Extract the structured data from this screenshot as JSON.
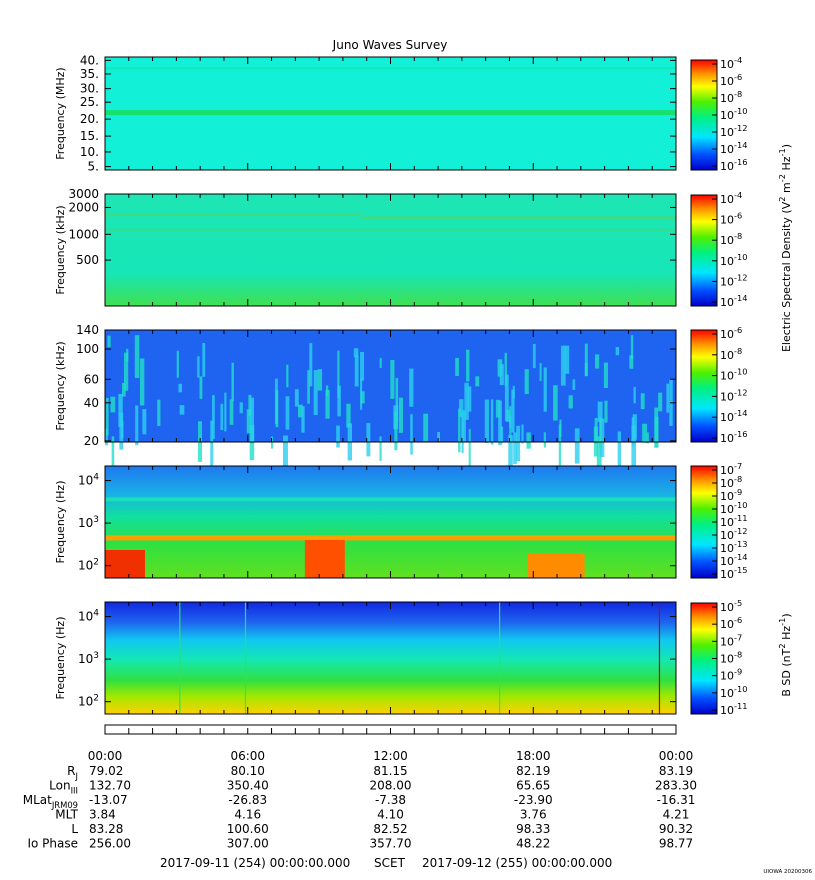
{
  "title": "Juno Waves Survey",
  "credit": "UIOWA 20200306",
  "colors": {
    "frame": "#000000",
    "text": "#000000",
    "background": "#ffffff"
  },
  "panels": [
    {
      "ylabel": "Frequency (MHz)",
      "yticks": [
        "40.",
        "35.",
        "30.",
        "25.",
        "20.",
        "15.",
        "10.",
        "5."
      ],
      "background": "#13f0d8",
      "cb_ticks": [
        "10^-4",
        "10^-6",
        "10^-8",
        "10^-10",
        "10^-12",
        "10^-14",
        "10^-16"
      ]
    },
    {
      "ylabel": "Frequency (kHz)",
      "yticks": [
        "3000",
        "2000",
        "1000",
        "500"
      ],
      "background": "#1ce6b0",
      "cb_ticks": [
        "10^-4",
        "10^-6",
        "10^-8",
        "10^-10",
        "10^-12",
        "10^-14"
      ]
    },
    {
      "ylabel": "Frequency (kHz)",
      "yticks": [
        "140",
        "100",
        "60",
        "40",
        "20"
      ],
      "background": "#1e64f0",
      "cb_ticks": [
        "10^-6",
        "10^-8",
        "10^-10",
        "10^-12",
        "10^-14",
        "10^-16"
      ]
    },
    {
      "ylabel": "Frequency (Hz)",
      "yticks": [
        "10^4",
        "10^3",
        "10^2"
      ],
      "background": "#18d870",
      "cb_ticks": [
        "10^-7",
        "10^-8",
        "10^-9",
        "10^-10",
        "10^-11",
        "10^-12",
        "10^-13",
        "10^-14",
        "10^-15"
      ]
    },
    {
      "ylabel": "Frequency (Hz)",
      "yticks": [
        "10^4",
        "10^3",
        "10^2"
      ],
      "background": "#18c8d0",
      "cb_ticks": [
        "10^-5",
        "10^-6",
        "10^-7",
        "10^-8",
        "10^-9",
        "10^-10",
        "10^-11"
      ]
    }
  ],
  "colorbar_labels": {
    "electric": "Electric Spectral Density (V^2 m^-2 Hz^-1)",
    "magnetic": "B SD (nT^2 Hz^-1)"
  },
  "chart_data": {
    "type": "heatmap",
    "title": "Juno Waves Survey",
    "x_tick_labels": [
      "00:00",
      "06:00",
      "12:00",
      "18:00",
      "00:00"
    ],
    "ephemeris": [
      {
        "label": "R_J",
        "values": [
          "79.02",
          "80.10",
          "81.15",
          "82.19",
          "83.19"
        ]
      },
      {
        "label": "Lon_III",
        "values": [
          "132.70",
          "350.40",
          "208.00",
          "65.65",
          "283.30"
        ]
      },
      {
        "label": "MLat_JRM09",
        "values": [
          "-13.07",
          "-26.83",
          "-7.38",
          "-23.90",
          "-16.31"
        ]
      },
      {
        "label": "MLT",
        "values": [
          "3.84",
          "4.16",
          "4.10",
          "3.76",
          "4.21"
        ]
      },
      {
        "label": "L",
        "values": [
          "83.28",
          "100.60",
          "82.52",
          "98.33",
          "90.32"
        ]
      },
      {
        "label": "Io Phase",
        "values": [
          "256.00",
          "307.00",
          "357.70",
          "48.22",
          "98.77"
        ]
      }
    ],
    "time_range": {
      "start": "2017-09-11 (254) 00:00:00.000",
      "axis": "SCET",
      "end": "2017-09-12 (255) 00:00:00.000"
    },
    "panels": [
      {
        "ylabel": "Frequency (MHz)",
        "ylim": [
          3,
          41
        ],
        "colorbar": "Electric Spectral Density",
        "crange": [
          1e-16,
          0.0001
        ]
      },
      {
        "ylabel": "Frequency (kHz)",
        "ylim": [
          140,
          3000
        ],
        "yscale": "log",
        "colorbar": "Electric Spectral Density",
        "crange": [
          1e-15,
          0.0001
        ]
      },
      {
        "ylabel": "Frequency (kHz)",
        "ylim": [
          20,
          140
        ],
        "yscale": "log",
        "colorbar": "Electric Spectral Density",
        "crange": [
          1e-16,
          1e-06
        ]
      },
      {
        "ylabel": "Frequency (Hz)",
        "ylim": [
          50,
          20000
        ],
        "yscale": "log",
        "colorbar": "Electric Spectral Density",
        "crange": [
          1e-15,
          1e-07
        ]
      },
      {
        "ylabel": "Frequency (Hz)",
        "ylim": [
          50,
          20000
        ],
        "yscale": "log",
        "colorbar": "B SD",
        "crange": [
          1e-11,
          1e-05
        ]
      }
    ]
  }
}
